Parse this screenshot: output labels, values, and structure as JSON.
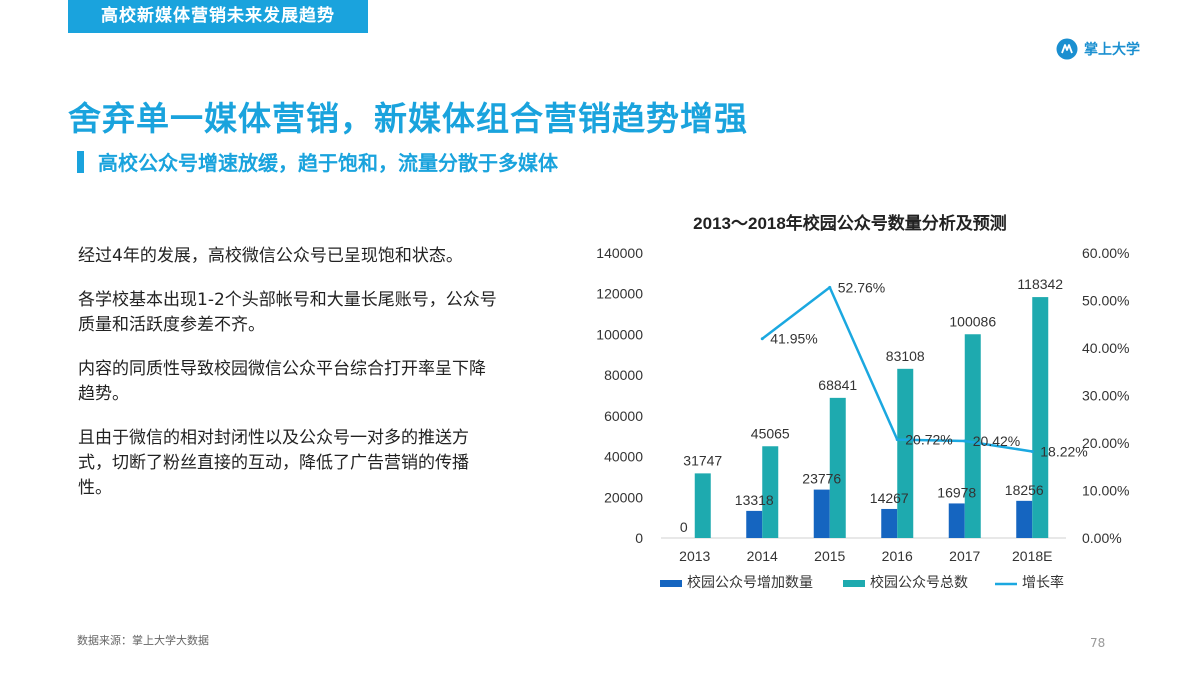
{
  "header": {
    "section_tab": "高校新媒体营销未来发展趋势",
    "brand_name": "掌上大学"
  },
  "headline": "舍弃单一媒体营销，新媒体组合营销趋势增强",
  "subheadline": "高校公众号增速放缓，趋于饱和，流量分散于多媒体",
  "paragraphs": [
    "经过4年的发展，高校微信公众号已呈现饱和状态。",
    "各学校基本出现1-2个头部帐号和大量长尾账号，公众号质量和活跃度参差不齐。",
    "内容的同质性导致校园微信公众平台综合打开率呈下降趋势。",
    "且由于微信的相对封闭性以及公众号一对多的推送方式，切断了粉丝直接的互动，降低了广告营销的传播性。"
  ],
  "footer": {
    "source": "数据来源：掌上大学大数据",
    "page_number": "78"
  },
  "colors": {
    "accent": "#1aa3dd",
    "bar_increase": "#1565c0",
    "bar_total": "#1eaaaf",
    "line_growth": "#1ba8e0"
  },
  "chart_data": {
    "type": "bar",
    "title": "2013～2018年校园公众号数量分析及预测",
    "categories": [
      "2013",
      "2014",
      "2015",
      "2016",
      "2017",
      "2018E"
    ],
    "series": [
      {
        "name": "校园公众号增加数量",
        "type": "bar",
        "axis": "left",
        "values": [
          0,
          13318,
          23776,
          14267,
          16978,
          18256
        ]
      },
      {
        "name": "校园公众号总数",
        "type": "bar",
        "axis": "left",
        "values": [
          31747,
          45065,
          68841,
          83108,
          100086,
          118342
        ]
      },
      {
        "name": "增长率",
        "type": "line",
        "axis": "right",
        "values": [
          null,
          41.95,
          52.76,
          20.72,
          20.42,
          18.22
        ]
      }
    ],
    "y_left": {
      "ticks": [
        "0",
        "20000",
        "40000",
        "60000",
        "80000",
        "100000",
        "120000",
        "140000"
      ],
      "ylim": [
        0,
        140000
      ]
    },
    "y_right": {
      "ticks": [
        "0.00%",
        "10.00%",
        "20.00%",
        "30.00%",
        "40.00%",
        "50.00%",
        "60.00%"
      ],
      "ylim": [
        0,
        60
      ]
    },
    "bar_labels": {
      "increase": [
        "0",
        "13318",
        "23776",
        "14267",
        "16978",
        "18256"
      ],
      "total": [
        "31747",
        "45065",
        "68841",
        "83108",
        "100086",
        "118342"
      ]
    },
    "line_labels": [
      "",
      "41.95%",
      "52.76%",
      "20.72%",
      "20.42%",
      "18.22%"
    ],
    "legend_position": "bottom",
    "grid": false
  }
}
